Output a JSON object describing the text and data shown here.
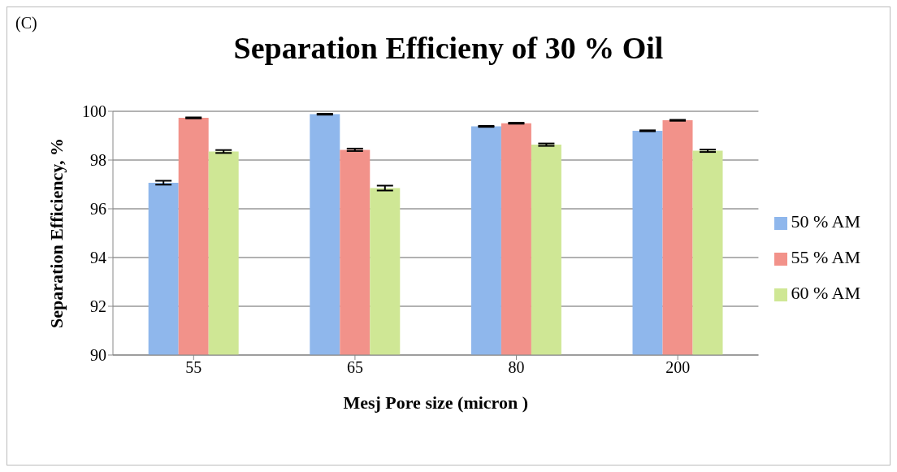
{
  "chart_data": {
    "type": "bar",
    "title": "Separation Efficieny of 30 % Oil",
    "xlabel": "Mesj Pore size (micron )",
    "ylabel": "Separation Efficiency, %",
    "annotations": [
      "(C)"
    ],
    "categories": [
      "55",
      "65",
      "80",
      "200"
    ],
    "series": [
      {
        "name": "50 % AM",
        "color": "#8fb7ec",
        "values": [
          97.07,
          99.88,
          99.38,
          99.2
        ],
        "errors": [
          0.08,
          0.02,
          0.02,
          0.02
        ]
      },
      {
        "name": "55 % AM",
        "color": "#f2928a",
        "values": [
          99.73,
          98.42,
          99.51,
          99.63
        ],
        "errors": [
          0.02,
          0.05,
          0.02,
          0.02
        ]
      },
      {
        "name": "60 % AM",
        "color": "#cfe795",
        "values": [
          98.35,
          96.85,
          98.63,
          98.38
        ],
        "errors": [
          0.06,
          0.1,
          0.05,
          0.05
        ]
      }
    ],
    "ylim": [
      90,
      100
    ],
    "yticks": [
      90,
      92,
      94,
      96,
      98,
      100
    ],
    "grid": "y",
    "legend": "right"
  }
}
